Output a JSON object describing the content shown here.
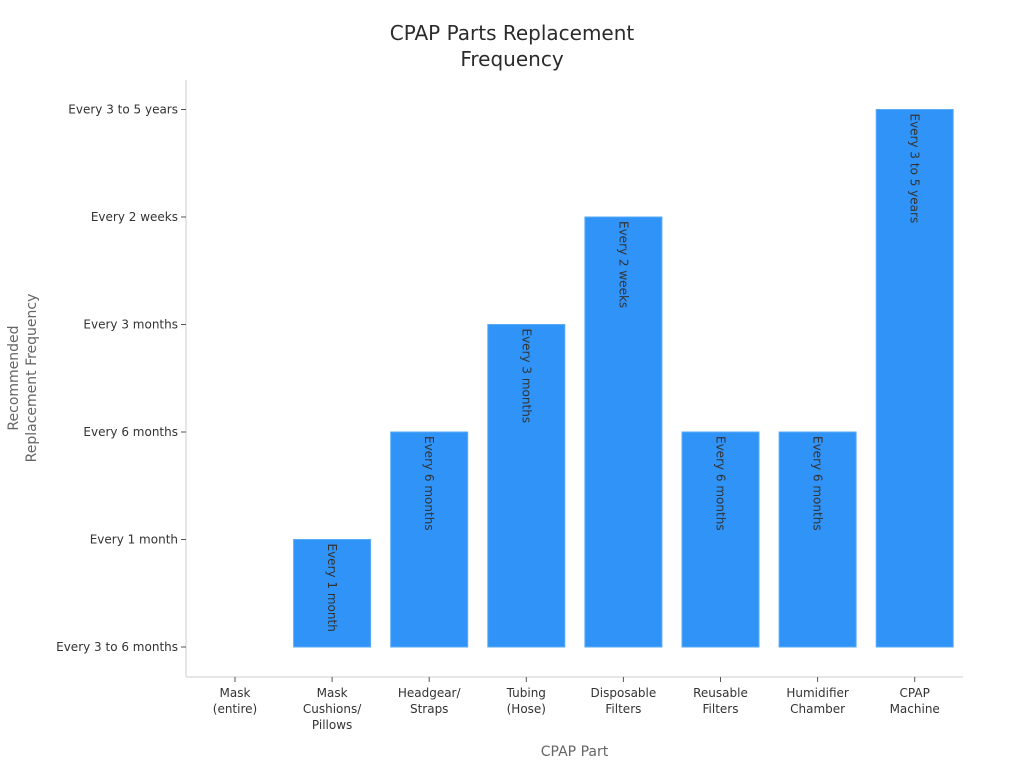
{
  "chart_data": {
    "type": "bar",
    "title_lines": [
      "CPAP Parts Replacement",
      "Frequency"
    ],
    "xlabel": "CPAP Part",
    "ylabel_lines": [
      "Recommended",
      "Replacement Frequency"
    ],
    "y_categories": [
      "Every 3 to 6 months",
      "Every 1 month",
      "Every 6 months",
      "Every 3 months",
      "Every 2 weeks",
      "Every 3 to 5 years"
    ],
    "categories": [
      [
        "Mask",
        "(entire)"
      ],
      [
        "Mask",
        "Cushions/",
        "Pillows"
      ],
      [
        "Headgear/",
        "Straps"
      ],
      [
        "Tubing",
        "(Hose)"
      ],
      [
        "Disposable",
        "Filters"
      ],
      [
        "Reusable",
        "Filters"
      ],
      [
        "Humidifier",
        "Chamber"
      ],
      [
        "CPAP",
        "Machine"
      ]
    ],
    "values": [
      "Every 3 to 6 months",
      "Every 1 month",
      "Every 6 months",
      "Every 3 months",
      "Every 2 weeks",
      "Every 6 months",
      "Every 6 months",
      "Every 3 to 5 years"
    ],
    "bar_labels": [
      "",
      "Every 1 month",
      "Every 6 months",
      "Every 3 months",
      "Every 2 weeks",
      "Every 6 months",
      "Every 6 months",
      "Every 3 to 5 years"
    ],
    "colors": {
      "bar": "#2f93f7",
      "bar_edge": "#5aabf7",
      "axis": "#cccccc",
      "text": "#333333",
      "axis_title": "#666666"
    }
  }
}
